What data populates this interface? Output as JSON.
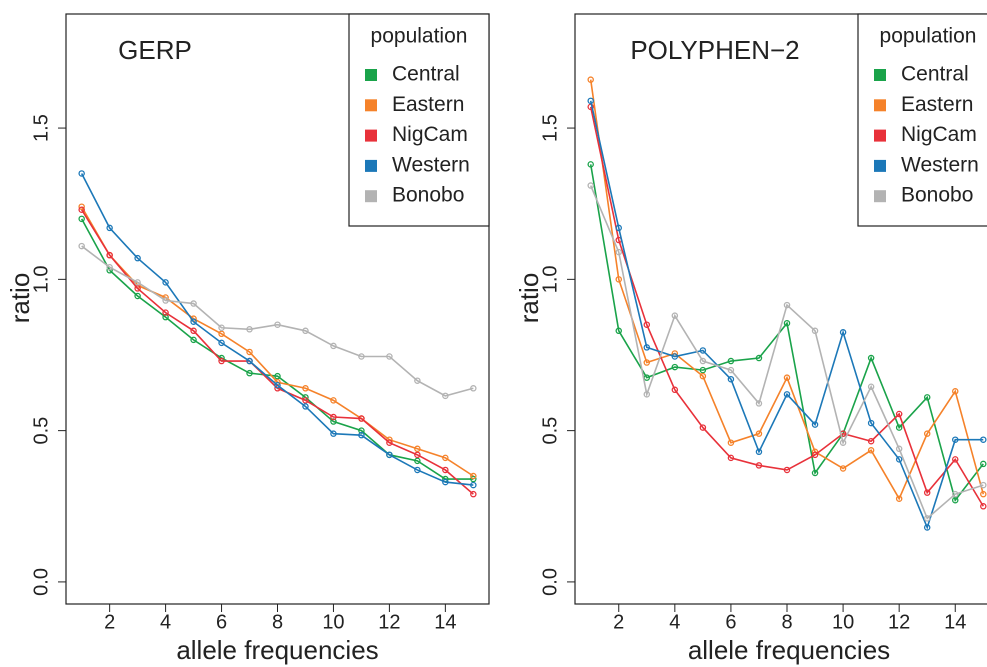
{
  "chart_data": [
    {
      "type": "line",
      "title": "GERP",
      "x_label": "allele frequencies",
      "y_label": "ratio",
      "legend_title": "population",
      "legend": "top-right",
      "x": [
        1,
        2,
        3,
        4,
        5,
        6,
        7,
        8,
        9,
        10,
        11,
        12,
        13,
        14,
        15
      ],
      "xlim": [
        0.44,
        15.56
      ],
      "xticks": [
        2,
        4,
        6,
        8,
        10,
        12,
        14
      ],
      "ylim": [
        -0.073,
        1.877
      ],
      "yticks": [
        {
          "value": 0,
          "label": "0.0"
        },
        0.5,
        {
          "value": 1,
          "label": "1.0"
        },
        1.5
      ],
      "series": [
        {
          "name": "Central",
          "color": "#1aa34a",
          "values": [
            1.2,
            1.03,
            0.945,
            0.875,
            0.8,
            0.74,
            0.69,
            0.68,
            0.61,
            0.53,
            0.5,
            0.42,
            0.4,
            0.34,
            0.34
          ]
        },
        {
          "name": "Eastern",
          "color": "#f5822a",
          "values": [
            1.24,
            1.08,
            0.98,
            0.94,
            0.87,
            0.82,
            0.76,
            0.66,
            0.64,
            0.6,
            0.54,
            0.47,
            0.44,
            0.41,
            0.35
          ]
        },
        {
          "name": "NigCam",
          "color": "#e8313a",
          "values": [
            1.23,
            1.08,
            0.97,
            0.89,
            0.83,
            0.73,
            0.73,
            0.64,
            0.6,
            0.545,
            0.54,
            0.46,
            0.42,
            0.37,
            0.29
          ]
        },
        {
          "name": "Western",
          "color": "#1c78b8",
          "values": [
            1.35,
            1.17,
            1.07,
            0.99,
            0.86,
            0.79,
            0.73,
            0.65,
            0.58,
            0.49,
            0.485,
            0.42,
            0.37,
            0.33,
            0.32
          ]
        },
        {
          "name": "Bonobo",
          "color": "#b3b3b3",
          "values": [
            1.11,
            1.04,
            0.99,
            0.93,
            0.92,
            0.84,
            0.835,
            0.85,
            0.83,
            0.78,
            0.745,
            0.745,
            0.665,
            0.615,
            0.64
          ]
        }
      ]
    },
    {
      "type": "line",
      "title": "POLYPHEN−2",
      "x_label": "allele frequencies",
      "y_label": "ratio",
      "legend_title": "population",
      "legend": "top-right",
      "x": [
        1,
        2,
        3,
        4,
        5,
        6,
        7,
        8,
        9,
        10,
        11,
        12,
        13,
        14,
        15
      ],
      "xlim": [
        0.44,
        15.56
      ],
      "xticks": [
        2,
        4,
        6,
        8,
        10,
        12,
        14
      ],
      "ylim": [
        -0.073,
        1.877
      ],
      "yticks": [
        {
          "value": 0,
          "label": "0.0"
        },
        0.5,
        {
          "value": 1,
          "label": "1.0"
        },
        1.5
      ],
      "series": [
        {
          "name": "Central",
          "color": "#1aa34a",
          "values": [
            1.38,
            0.83,
            0.675,
            0.71,
            0.7,
            0.73,
            0.74,
            0.855,
            0.36,
            0.49,
            0.74,
            0.51,
            0.61,
            0.27,
            0.39
          ]
        },
        {
          "name": "Eastern",
          "color": "#f5822a",
          "values": [
            1.66,
            1.0,
            0.725,
            0.755,
            0.68,
            0.46,
            0.49,
            0.675,
            0.43,
            0.375,
            0.435,
            0.275,
            0.49,
            0.63,
            0.29
          ]
        },
        {
          "name": "NigCam",
          "color": "#e8313a",
          "values": [
            1.57,
            1.13,
            0.85,
            0.635,
            0.51,
            0.41,
            0.385,
            0.37,
            0.42,
            0.49,
            0.465,
            0.555,
            0.295,
            0.405,
            0.25
          ]
        },
        {
          "name": "Western",
          "color": "#1c78b8",
          "values": [
            1.59,
            1.17,
            0.775,
            0.745,
            0.765,
            0.67,
            0.43,
            0.62,
            0.52,
            0.825,
            0.525,
            0.405,
            0.18,
            0.47,
            0.47
          ]
        },
        {
          "name": "Bonobo",
          "color": "#b3b3b3",
          "values": [
            1.31,
            1.09,
            0.62,
            0.88,
            0.73,
            0.7,
            0.59,
            0.915,
            0.83,
            0.46,
            0.645,
            0.44,
            0.21,
            0.29,
            0.32
          ]
        }
      ]
    }
  ]
}
